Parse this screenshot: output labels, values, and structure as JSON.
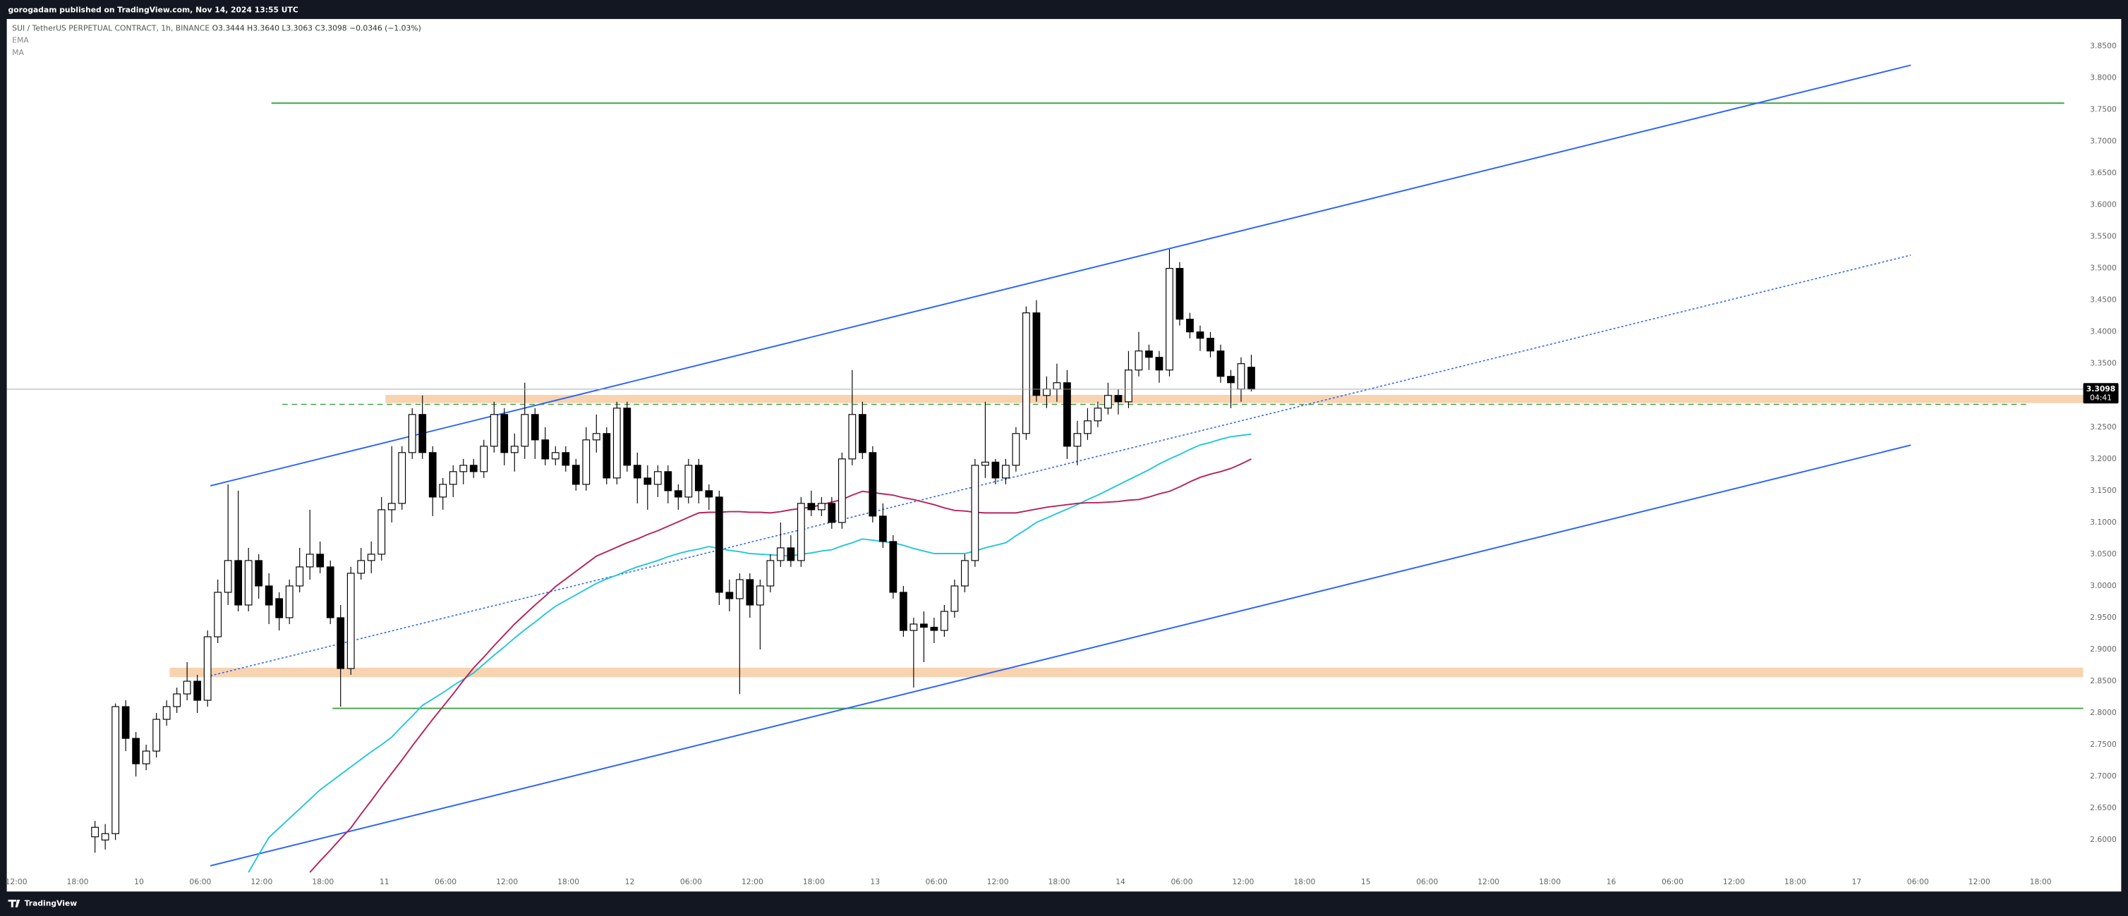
{
  "header": {
    "title": "gorogadam published on TradingView.com, Nov 14, 2024 13:55 UTC"
  },
  "footer": {
    "brand": "TradingView"
  },
  "chart_data": {
    "type": "candlestick",
    "symbol": "SUI / TetherUS PERPETUAL CONTRACT, 1h, BINANCE",
    "ohlc_labels": [
      "O3.3444",
      "H3.3640",
      "L3.3063",
      "C3.3098"
    ],
    "change": "−0.0346 (−1.03%)",
    "countdown": "04:41",
    "up_color": "#ffffff",
    "down_color": "#000000",
    "wick_color": "#000000",
    "ylim": [
      2.5487,
      3.8927
    ],
    "grid": false,
    "yticks": [
      {
        "value": 2.6,
        "label": "2.6000"
      },
      {
        "value": 2.65,
        "label": "2.6500"
      },
      {
        "value": 2.7,
        "label": "2.7000"
      },
      {
        "value": 2.75,
        "label": "2.7500"
      },
      {
        "value": 2.8,
        "label": "2.8000"
      },
      {
        "value": 2.85,
        "label": "2.8500"
      },
      {
        "value": 2.9,
        "label": "2.9000"
      },
      {
        "value": 2.95,
        "label": "2.9500"
      },
      {
        "value": 3.0,
        "label": "3.0000"
      },
      {
        "value": 3.05,
        "label": "3.0500"
      },
      {
        "value": 3.1,
        "label": "3.1000"
      },
      {
        "value": 3.15,
        "label": "3.1500"
      },
      {
        "value": 3.2,
        "label": "3.2000"
      },
      {
        "value": 3.25,
        "label": "3.2500"
      },
      {
        "value": 3.3,
        "label": "3.3000"
      },
      {
        "value": 3.35,
        "label": "3.3500"
      },
      {
        "value": 3.4,
        "label": "3.4000"
      },
      {
        "value": 3.45,
        "label": "3.4500"
      },
      {
        "value": 3.5,
        "label": "3.5000"
      },
      {
        "value": 3.55,
        "label": "3.5500"
      },
      {
        "value": 3.6,
        "label": "3.6000"
      },
      {
        "value": 3.65,
        "label": "3.6500"
      },
      {
        "value": 3.7,
        "label": "3.7000"
      },
      {
        "value": 3.75,
        "label": "3.7500"
      },
      {
        "value": 3.8,
        "label": "3.8000"
      },
      {
        "value": 3.85,
        "label": "3.8500"
      }
    ],
    "xticks": [
      "12:00",
      "18:00",
      "10",
      "06:00",
      "12:00",
      "18:00",
      "11",
      "06:00",
      "12:00",
      "18:00",
      "12",
      "06:00",
      "12:00",
      "18:00",
      "13",
      "06:00",
      "12:00",
      "18:00",
      "14",
      "06:00",
      "12:00",
      "18:00",
      "15",
      "06:00",
      "12:00",
      "18:00",
      "16",
      "06:00",
      "12:00",
      "18:00",
      "17",
      "06:00",
      "12:00",
      "18:00"
    ],
    "candles": [
      [
        2.605,
        2.63,
        2.58,
        2.62
      ],
      [
        2.6,
        2.625,
        2.585,
        2.61
      ],
      [
        2.61,
        2.815,
        2.6,
        2.81
      ],
      [
        2.81,
        2.82,
        2.74,
        2.76
      ],
      [
        2.76,
        2.77,
        2.7,
        2.72
      ],
      [
        2.72,
        2.75,
        2.71,
        2.74
      ],
      [
        2.74,
        2.8,
        2.73,
        2.79
      ],
      [
        2.79,
        2.82,
        2.78,
        2.81
      ],
      [
        2.81,
        2.84,
        2.8,
        2.83
      ],
      [
        2.83,
        2.88,
        2.82,
        2.85
      ],
      [
        2.85,
        2.86,
        2.8,
        2.82
      ],
      [
        2.82,
        2.93,
        2.81,
        2.92
      ],
      [
        2.92,
        3.01,
        2.91,
        2.99
      ],
      [
        2.99,
        3.16,
        2.97,
        3.04
      ],
      [
        3.04,
        3.15,
        2.96,
        2.97
      ],
      [
        2.97,
        3.06,
        2.96,
        3.04
      ],
      [
        3.04,
        3.05,
        2.98,
        3.0
      ],
      [
        3.0,
        3.02,
        2.94,
        2.97
      ],
      [
        2.98,
        2.99,
        2.93,
        2.95
      ],
      [
        2.95,
        3.01,
        2.94,
        3.0
      ],
      [
        3.0,
        3.06,
        2.99,
        3.03
      ],
      [
        3.03,
        3.12,
        3.01,
        3.05
      ],
      [
        3.05,
        3.07,
        3.02,
        3.03
      ],
      [
        3.03,
        3.04,
        2.94,
        2.95
      ],
      [
        2.95,
        2.97,
        2.81,
        2.87
      ],
      [
        2.87,
        3.03,
        2.86,
        3.02
      ],
      [
        3.02,
        3.06,
        3.01,
        3.04
      ],
      [
        3.04,
        3.07,
        3.02,
        3.05
      ],
      [
        3.05,
        3.14,
        3.04,
        3.12
      ],
      [
        3.12,
        3.22,
        3.1,
        3.13
      ],
      [
        3.13,
        3.22,
        3.12,
        3.21
      ],
      [
        3.21,
        3.28,
        3.2,
        3.27
      ],
      [
        3.27,
        3.3,
        3.2,
        3.21
      ],
      [
        3.21,
        3.22,
        3.11,
        3.14
      ],
      [
        3.14,
        3.17,
        3.12,
        3.16
      ],
      [
        3.16,
        3.19,
        3.14,
        3.18
      ],
      [
        3.18,
        3.2,
        3.16,
        3.19
      ],
      [
        3.19,
        3.2,
        3.17,
        3.18
      ],
      [
        3.18,
        3.23,
        3.17,
        3.22
      ],
      [
        3.22,
        3.29,
        3.21,
        3.27
      ],
      [
        3.27,
        3.28,
        3.19,
        3.21
      ],
      [
        3.21,
        3.24,
        3.18,
        3.22
      ],
      [
        3.22,
        3.32,
        3.2,
        3.27
      ],
      [
        3.27,
        3.28,
        3.2,
        3.23
      ],
      [
        3.23,
        3.25,
        3.19,
        3.2
      ],
      [
        3.2,
        3.22,
        3.19,
        3.21
      ],
      [
        3.21,
        3.22,
        3.18,
        3.19
      ],
      [
        3.19,
        3.2,
        3.15,
        3.16
      ],
      [
        3.16,
        3.25,
        3.15,
        3.23
      ],
      [
        3.23,
        3.27,
        3.21,
        3.24
      ],
      [
        3.24,
        3.25,
        3.16,
        3.17
      ],
      [
        3.17,
        3.29,
        3.16,
        3.28
      ],
      [
        3.28,
        3.29,
        3.18,
        3.19
      ],
      [
        3.19,
        3.21,
        3.13,
        3.17
      ],
      [
        3.17,
        3.19,
        3.12,
        3.16
      ],
      [
        3.16,
        3.19,
        3.14,
        3.18
      ],
      [
        3.18,
        3.19,
        3.13,
        3.15
      ],
      [
        3.15,
        3.16,
        3.12,
        3.14
      ],
      [
        3.14,
        3.2,
        3.13,
        3.19
      ],
      [
        3.19,
        3.2,
        3.13,
        3.15
      ],
      [
        3.15,
        3.16,
        3.12,
        3.14
      ],
      [
        3.14,
        3.15,
        2.97,
        2.99
      ],
      [
        2.99,
        3.01,
        2.96,
        2.98
      ],
      [
        2.98,
        3.02,
        2.83,
        3.01
      ],
      [
        3.01,
        3.02,
        2.95,
        2.97
      ],
      [
        2.97,
        3.01,
        2.9,
        3.0
      ],
      [
        3.0,
        3.05,
        2.99,
        3.04
      ],
      [
        3.04,
        3.1,
        3.03,
        3.06
      ],
      [
        3.06,
        3.08,
        3.03,
        3.04
      ],
      [
        3.04,
        3.14,
        3.03,
        3.13
      ],
      [
        3.13,
        3.15,
        3.11,
        3.12
      ],
      [
        3.12,
        3.14,
        3.11,
        3.13
      ],
      [
        3.13,
        3.14,
        3.09,
        3.1
      ],
      [
        3.1,
        3.21,
        3.09,
        3.2
      ],
      [
        3.2,
        3.34,
        3.19,
        3.27
      ],
      [
        3.27,
        3.29,
        3.2,
        3.21
      ],
      [
        3.21,
        3.22,
        3.1,
        3.11
      ],
      [
        3.11,
        3.13,
        3.06,
        3.07
      ],
      [
        3.07,
        3.08,
        2.98,
        2.99
      ],
      [
        2.99,
        3.0,
        2.92,
        2.93
      ],
      [
        2.93,
        2.95,
        2.84,
        2.94
      ],
      [
        2.94,
        2.96,
        2.88,
        2.935
      ],
      [
        2.935,
        2.95,
        2.91,
        2.93
      ],
      [
        2.93,
        2.97,
        2.92,
        2.96
      ],
      [
        2.96,
        3.01,
        2.95,
        3.0
      ],
      [
        3.0,
        3.05,
        2.99,
        3.04
      ],
      [
        3.04,
        3.2,
        3.03,
        3.19
      ],
      [
        3.19,
        3.29,
        3.17,
        3.195
      ],
      [
        3.195,
        3.2,
        3.16,
        3.17
      ],
      [
        3.17,
        3.2,
        3.16,
        3.19
      ],
      [
        3.19,
        3.25,
        3.18,
        3.24
      ],
      [
        3.24,
        3.44,
        3.23,
        3.43
      ],
      [
        3.43,
        3.45,
        3.29,
        3.3
      ],
      [
        3.3,
        3.33,
        3.28,
        3.31
      ],
      [
        3.31,
        3.35,
        3.29,
        3.32
      ],
      [
        3.32,
        3.34,
        3.2,
        3.22
      ],
      [
        3.22,
        3.26,
        3.19,
        3.24
      ],
      [
        3.24,
        3.28,
        3.23,
        3.26
      ],
      [
        3.26,
        3.29,
        3.25,
        3.28
      ],
      [
        3.28,
        3.32,
        3.27,
        3.3
      ],
      [
        3.3,
        3.31,
        3.27,
        3.29
      ],
      [
        3.29,
        3.37,
        3.28,
        3.34
      ],
      [
        3.34,
        3.4,
        3.33,
        3.37
      ],
      [
        3.37,
        3.38,
        3.34,
        3.36
      ],
      [
        3.36,
        3.37,
        3.32,
        3.34
      ],
      [
        3.34,
        3.53,
        3.33,
        3.5
      ],
      [
        3.5,
        3.51,
        3.41,
        3.42
      ],
      [
        3.42,
        3.43,
        3.39,
        3.4
      ],
      [
        3.4,
        3.41,
        3.37,
        3.39
      ],
      [
        3.39,
        3.4,
        3.36,
        3.37
      ],
      [
        3.37,
        3.38,
        3.32,
        3.33
      ],
      [
        3.33,
        3.34,
        3.28,
        3.32
      ],
      [
        3.31,
        3.36,
        3.29,
        3.35
      ],
      [
        3.3444,
        3.364,
        3.3063,
        3.3098
      ]
    ],
    "series": [
      {
        "name": "EMA",
        "color": "#26c6da",
        "values": [
          null,
          null,
          null,
          null,
          null,
          null,
          null,
          null,
          null,
          null,
          null,
          null,
          null,
          null,
          null,
          2.549,
          2.577,
          2.604,
          2.619,
          2.634,
          2.649,
          2.664,
          2.679,
          2.691,
          2.703,
          2.715,
          2.727,
          2.739,
          2.75,
          2.762,
          2.779,
          2.795,
          2.812,
          2.822,
          2.832,
          2.843,
          2.853,
          2.863,
          2.877,
          2.891,
          2.904,
          2.918,
          2.931,
          2.943,
          2.956,
          2.968,
          2.977,
          2.986,
          2.995,
          3.004,
          3.011,
          3.017,
          3.024,
          3.03,
          3.035,
          3.04,
          3.046,
          3.051,
          3.055,
          3.058,
          3.062,
          3.059,
          3.056,
          3.054,
          3.051,
          3.05,
          3.049,
          3.048,
          3.047,
          3.05,
          3.052,
          3.055,
          3.057,
          3.063,
          3.068,
          3.074,
          3.072,
          3.07,
          3.068,
          3.064,
          3.059,
          3.055,
          3.051,
          3.051,
          3.051,
          3.051,
          3.055,
          3.06,
          3.064,
          3.068,
          3.079,
          3.089,
          3.1,
          3.107,
          3.114,
          3.121,
          3.128,
          3.136,
          3.143,
          3.151,
          3.159,
          3.167,
          3.175,
          3.183,
          3.192,
          3.2,
          3.207,
          3.215,
          3.222,
          3.226,
          3.231,
          3.235,
          3.237,
          3.239
        ]
      },
      {
        "name": "MA",
        "color": "#b5245f",
        "values": [
          null,
          null,
          null,
          null,
          null,
          null,
          null,
          null,
          null,
          null,
          null,
          null,
          null,
          null,
          null,
          null,
          null,
          null,
          null,
          null,
          null,
          2.549,
          2.567,
          2.584,
          2.602,
          2.619,
          2.641,
          2.662,
          2.684,
          2.705,
          2.726,
          2.748,
          2.769,
          2.79,
          2.81,
          2.83,
          2.851,
          2.871,
          2.888,
          2.906,
          2.923,
          2.94,
          2.955,
          2.97,
          2.984,
          2.999,
          3.011,
          3.023,
          3.035,
          3.047,
          3.054,
          3.061,
          3.068,
          3.074,
          3.081,
          3.087,
          3.094,
          3.101,
          3.108,
          3.115,
          3.116,
          3.116,
          3.117,
          3.117,
          3.116,
          3.116,
          3.115,
          3.117,
          3.12,
          3.122,
          3.124,
          3.128,
          3.132,
          3.136,
          3.143,
          3.149,
          3.147,
          3.145,
          3.143,
          3.139,
          3.136,
          3.132,
          3.128,
          3.123,
          3.119,
          3.118,
          3.116,
          3.115,
          3.115,
          3.115,
          3.115,
          3.118,
          3.121,
          3.124,
          3.126,
          3.128,
          3.13,
          3.131,
          3.131,
          3.132,
          3.133,
          3.135,
          3.136,
          3.14,
          3.145,
          3.149,
          3.156,
          3.164,
          3.171,
          3.176,
          3.18,
          3.185,
          3.192,
          3.2
        ]
      }
    ]
  }
}
